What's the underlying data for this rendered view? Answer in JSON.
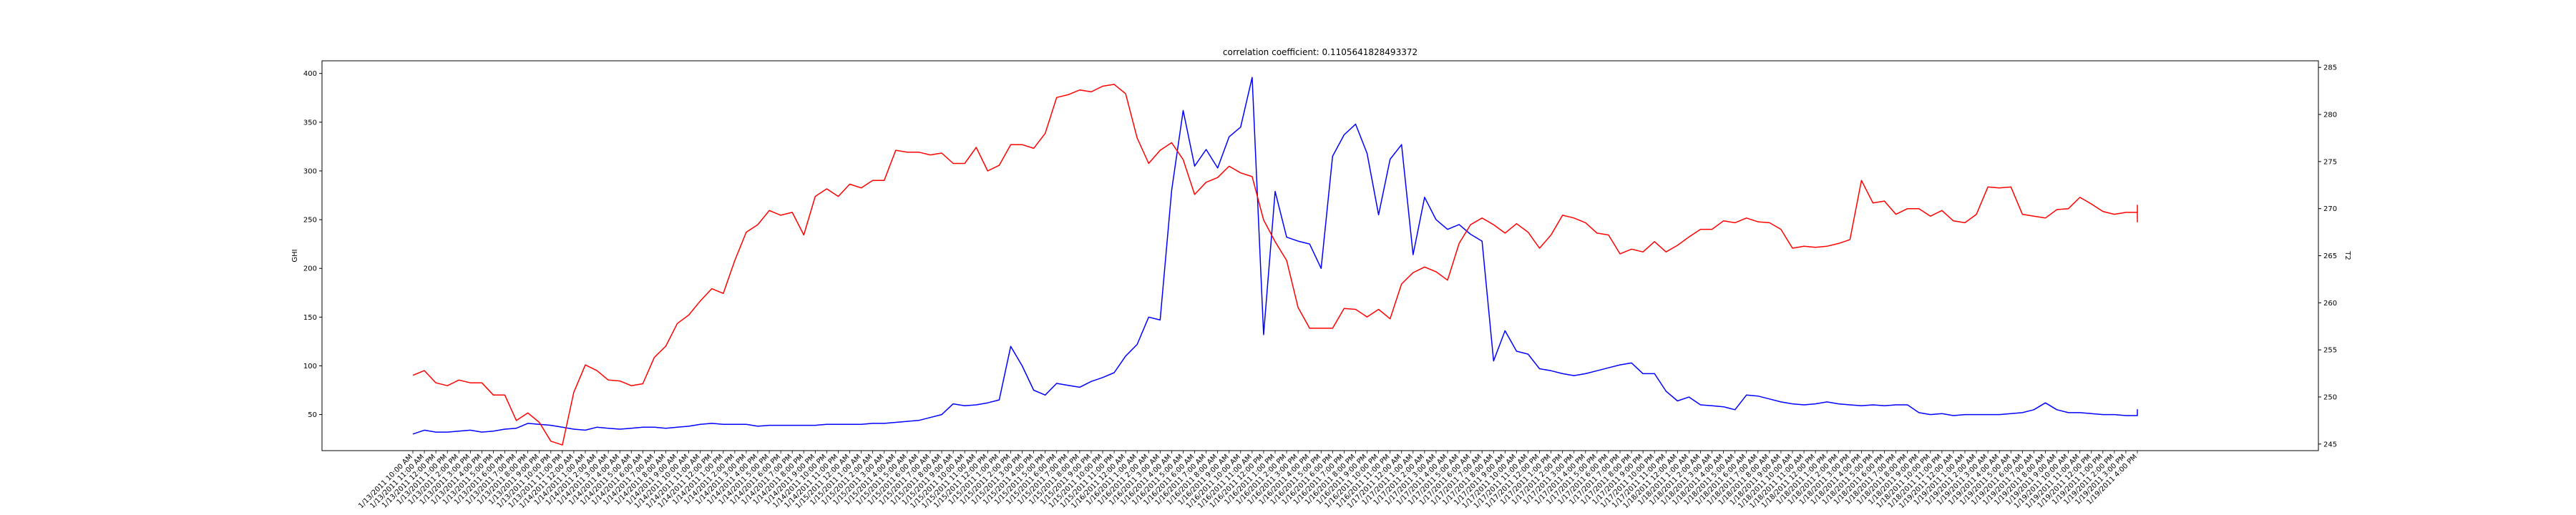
{
  "chart_data": {
    "type": "line",
    "title": "correlation coefficient: 0.1105641828493372",
    "ylabel_left": "GHI",
    "ylabel_right": "T2",
    "left_axis": {
      "ticks": [
        50,
        100,
        150,
        200,
        250,
        300,
        350,
        400
      ],
      "range": [
        13,
        413
      ]
    },
    "right_axis": {
      "ticks": [
        245,
        250,
        255,
        260,
        265,
        270,
        275,
        280,
        285
      ],
      "range": [
        244.3,
        285.7
      ]
    },
    "grid": false,
    "legend": "none",
    "colors": {
      "ghi": "#0000ff",
      "t2": "#ff0000"
    },
    "x_labels": [
      "1/13/2011 10:00 AM",
      "1/13/2011 11:00 AM",
      "1/13/2011 12:00 PM",
      "1/13/2011 1:00 PM",
      "1/13/2011 2:00 PM",
      "1/13/2011 3:00 PM",
      "1/13/2011 4:00 PM",
      "1/13/2011 5:00 PM",
      "1/13/2011 6:00 PM",
      "1/13/2011 7:00 PM",
      "1/13/2011 8:00 PM",
      "1/13/2011 9:00 PM",
      "1/13/2011 10:00 PM",
      "1/13/2011 11:00 PM",
      "1/14/2011 12:00 AM",
      "1/14/2011 1:00 AM",
      "1/14/2011 2:00 AM",
      "1/14/2011 3:00 AM",
      "1/14/2011 4:00 AM",
      "1/14/2011 5:00 AM",
      "1/14/2011 6:00 AM",
      "1/14/2011 7:00 AM",
      "1/14/2011 8:00 AM",
      "1/14/2011 9:00 AM",
      "1/14/2011 10:00 AM",
      "1/14/2011 11:00 AM",
      "1/14/2011 12:00 PM",
      "1/14/2011 1:00 PM",
      "1/14/2011 2:00 PM",
      "1/14/2011 3:00 PM",
      "1/14/2011 4:00 PM",
      "1/14/2011 5:00 PM",
      "1/14/2011 6:00 PM",
      "1/14/2011 7:00 PM",
      "1/14/2011 8:00 PM",
      "1/14/2011 9:00 PM",
      "1/14/2011 10:00 PM",
      "1/14/2011 11:00 PM",
      "1/15/2011 12:00 AM",
      "1/15/2011 1:00 AM",
      "1/15/2011 2:00 AM",
      "1/15/2011 3:00 AM",
      "1/15/2011 4:00 AM",
      "1/15/2011 5:00 AM",
      "1/15/2011 6:00 AM",
      "1/15/2011 7:00 AM",
      "1/15/2011 8:00 AM",
      "1/15/2011 9:00 AM",
      "1/15/2011 10:00 AM",
      "1/15/2011 11:00 AM",
      "1/15/2011 12:00 PM",
      "1/15/2011 1:00 PM",
      "1/15/2011 2:00 PM",
      "1/15/2011 3:00 PM",
      "1/15/2011 4:00 PM",
      "1/15/2011 5:00 PM",
      "1/15/2011 6:00 PM",
      "1/15/2011 7:00 PM",
      "1/15/2011 8:00 PM",
      "1/15/2011 9:00 PM",
      "1/15/2011 10:00 PM",
      "1/15/2011 11:00 PM",
      "1/16/2011 12:00 AM",
      "1/16/2011 1:00 AM",
      "1/16/2011 2:00 AM",
      "1/16/2011 3:00 AM",
      "1/16/2011 4:00 AM",
      "1/16/2011 5:00 AM",
      "1/16/2011 6:00 AM",
      "1/16/2011 7:00 AM",
      "1/16/2011 8:00 AM",
      "1/16/2011 9:00 AM",
      "1/16/2011 10:00 AM",
      "1/16/2011 11:00 AM",
      "1/16/2011 12:00 PM",
      "1/16/2011 1:00 PM",
      "1/16/2011 2:00 PM",
      "1/16/2011 3:00 PM",
      "1/16/2011 4:00 PM",
      "1/16/2011 5:00 PM",
      "1/16/2011 6:00 PM",
      "1/16/2011 7:00 PM",
      "1/16/2011 8:00 PM",
      "1/16/2011 9:00 PM",
      "1/16/2011 10:00 PM",
      "1/16/2011 11:00 PM",
      "1/17/2011 12:00 AM",
      "1/17/2011 1:00 AM",
      "1/17/2011 2:00 AM",
      "1/17/2011 3:00 AM",
      "1/17/2011 4:00 AM",
      "1/17/2011 5:00 AM",
      "1/17/2011 6:00 AM",
      "1/17/2011 7:00 AM",
      "1/17/2011 8:00 AM",
      "1/17/2011 9:00 AM",
      "1/17/2011 10:00 AM",
      "1/17/2011 11:00 AM",
      "1/17/2011 12:00 PM",
      "1/17/2011 1:00 PM",
      "1/17/2011 2:00 PM",
      "1/17/2011 3:00 PM",
      "1/17/2011 4:00 PM",
      "1/17/2011 5:00 PM",
      "1/17/2011 6:00 PM",
      "1/17/2011 7:00 PM",
      "1/17/2011 8:00 PM",
      "1/17/2011 9:00 PM",
      "1/17/2011 10:00 PM",
      "1/17/2011 11:00 PM",
      "1/18/2011 12:00 AM",
      "1/18/2011 1:00 AM",
      "1/18/2011 2:00 AM",
      "1/18/2011 3:00 AM",
      "1/18/2011 4:00 AM",
      "1/18/2011 5:00 AM",
      "1/18/2011 6:00 AM",
      "1/18/2011 7:00 AM",
      "1/18/2011 8:00 AM",
      "1/18/2011 9:00 AM",
      "1/18/2011 10:00 AM",
      "1/18/2011 11:00 AM",
      "1/18/2011 12:00 PM",
      "1/18/2011 1:00 PM",
      "1/18/2011 2:00 PM",
      "1/18/2011 3:00 PM",
      "1/18/2011 4:00 PM",
      "1/18/2011 5:00 PM",
      "1/18/2011 6:00 PM",
      "1/18/2011 7:00 PM",
      "1/18/2011 8:00 PM",
      "1/18/2011 9:00 PM",
      "1/18/2011 10:00 PM",
      "1/18/2011 11:00 PM",
      "1/19/2011 12:00 AM",
      "1/19/2011 1:00 AM",
      "1/19/2011 2:00 AM",
      "1/19/2011 3:00 AM",
      "1/19/2011 4:00 AM",
      "1/19/2011 5:00 AM",
      "1/19/2011 6:00 AM",
      "1/19/2011 7:00 AM",
      "1/19/2011 8:00 AM",
      "1/19/2011 9:00 AM",
      "1/19/2011 10:00 AM",
      "1/19/2011 11:00 AM",
      "1/19/2011 12:00 PM",
      "1/19/2011 1:00 PM",
      "1/19/2011 2:00 PM",
      "1/19/2011 3:00 PM",
      "1/19/2011 4:00 PM"
    ],
    "series": [
      {
        "name": "GHI",
        "axis": "left",
        "values": [
          30,
          34,
          32,
          32,
          33,
          34,
          32,
          33,
          35,
          36,
          41,
          40,
          39,
          37,
          35,
          34,
          37,
          36,
          35,
          36,
          37,
          37,
          36,
          37,
          38,
          40,
          41,
          40,
          40,
          40,
          38,
          39,
          39,
          39,
          39,
          39,
          40,
          40,
          40,
          40,
          41,
          41,
          42,
          43,
          44,
          47,
          50,
          61,
          59,
          60,
          62,
          65,
          120,
          100,
          75,
          70,
          82,
          80,
          78,
          84,
          88,
          93,
          110,
          122,
          150,
          147,
          280,
          362,
          305,
          322,
          303,
          335,
          345,
          396,
          132,
          279,
          232,
          228,
          225,
          200,
          315,
          337,
          348,
          318,
          255,
          312,
          327,
          214,
          273,
          250,
          240,
          245,
          235,
          228,
          105,
          136,
          115,
          112,
          97,
          95,
          92,
          90,
          92,
          95,
          98,
          101,
          103,
          92,
          92,
          74,
          64,
          68,
          60,
          59,
          58,
          55,
          70,
          69,
          66,
          63,
          61,
          60,
          61,
          63,
          61,
          60,
          59,
          60,
          59,
          60,
          60,
          52,
          50,
          51,
          49,
          50,
          50,
          50,
          50,
          51,
          52,
          55,
          62,
          55,
          52,
          52,
          51,
          50,
          50,
          49,
          49,
          50,
          49,
          51,
          51,
          54,
          55,
          52,
          51,
          51,
          52,
          53
        ]
      },
      {
        "name": "T2",
        "axis": "right",
        "values": [
          252.3,
          252.8,
          251.5,
          251.2,
          251.8,
          251.5,
          251.5,
          250.2,
          250.2,
          247.5,
          248.3,
          247.3,
          245.3,
          244.9,
          250.5,
          253.4,
          252.8,
          251.8,
          251.7,
          251.2,
          251.4,
          254.2,
          255.4,
          257.8,
          258.7,
          260.2,
          261.5,
          261.0,
          264.5,
          267.5,
          268.3,
          269.8,
          269.3,
          269.6,
          267.2,
          271.3,
          272.1,
          271.3,
          272.6,
          272.2,
          273.0,
          273.0,
          276.2,
          276.0,
          276.0,
          275.7,
          275.9,
          274.8,
          274.8,
          276.5,
          274.0,
          274.6,
          276.8,
          276.8,
          276.4,
          278.0,
          281.8,
          282.1,
          282.6,
          282.4,
          283.0,
          283.2,
          282.2,
          277.5,
          274.8,
          276.2,
          277.0,
          275.2,
          271.5,
          272.8,
          273.3,
          274.5,
          273.8,
          273.4,
          268.8,
          266.5,
          264.5,
          259.5,
          257.3,
          257.3,
          257.3,
          259.4,
          259.3,
          258.5,
          259.3,
          258.3,
          262.0,
          263.2,
          263.8,
          263.3,
          262.4,
          266.3,
          268.3,
          269.0,
          268.3,
          267.4,
          268.4,
          267.5,
          265.8,
          267.2,
          269.3,
          269.0,
          268.5,
          267.4,
          267.2,
          265.2,
          265.7,
          265.4,
          266.5,
          265.4,
          266.1,
          267.0,
          267.8,
          267.8,
          268.7,
          268.5,
          269.0,
          268.6,
          268.5,
          267.8,
          265.8,
          266.0,
          265.9,
          266.0,
          266.3,
          266.7,
          273.0,
          270.6,
          270.8,
          269.4,
          270.0,
          270.0,
          269.2,
          269.8,
          268.7,
          268.5,
          269.4,
          272.3,
          272.2,
          272.3,
          269.4,
          269.2,
          269.0,
          269.9,
          270.0,
          271.2,
          270.5,
          269.7,
          269.4,
          269.6,
          269.6,
          268.6,
          269.1,
          270.4
        ]
      }
    ]
  }
}
